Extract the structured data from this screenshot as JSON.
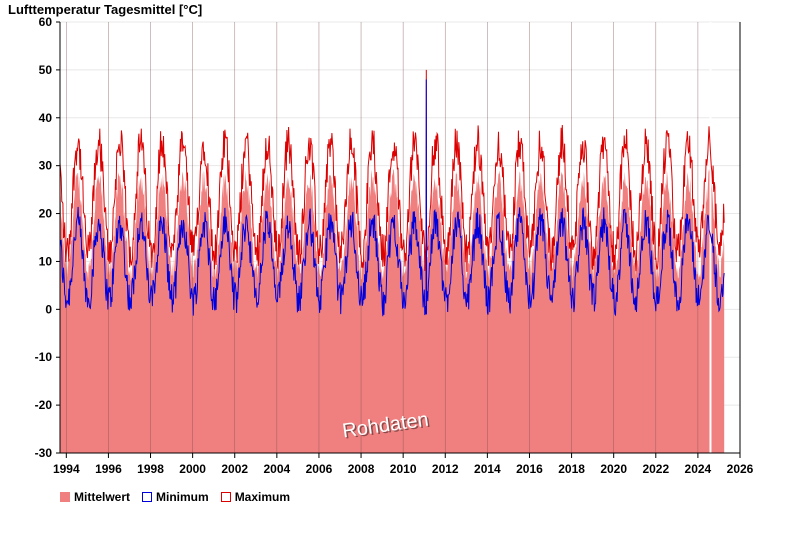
{
  "chart_data": {
    "type": "area",
    "title": "Lufttemperatur Tagesmittel [°C]",
    "xlabel": "",
    "ylabel": "",
    "xlim": [
      1993.7,
      2026.0
    ],
    "ylim": [
      -30,
      60
    ],
    "y_ticks": [
      -30,
      -20,
      -10,
      0,
      10,
      20,
      30,
      40,
      50,
      60
    ],
    "y_tick_labels": [
      "-30",
      "-20",
      "-10",
      "0",
      "10",
      "20",
      "30",
      "40",
      "50",
      "60"
    ],
    "x_ticks": [
      1994,
      1996,
      1998,
      2000,
      2002,
      2004,
      2006,
      2008,
      2010,
      2012,
      2014,
      2016,
      2018,
      2020,
      2022,
      2024,
      2026
    ],
    "x_tick_labels": [
      "1994",
      "1996",
      "1998",
      "2000",
      "2002",
      "2004",
      "2006",
      "2008",
      "2010",
      "2012",
      "2014",
      "2016",
      "2018",
      "2020",
      "2022",
      "2024",
      "2026"
    ],
    "data_start": 1993.7,
    "data_end": 2025.25,
    "gap": [
      2024.55,
      2024.62
    ],
    "annotation": "Rohdaten",
    "series": [
      {
        "name": "Mittelwert",
        "color": "#f08080",
        "style": "filled-area",
        "typical_min": 8,
        "typical_max": 27
      },
      {
        "name": "Minimum",
        "color": "#0000dd",
        "style": "line",
        "typical_min": 2,
        "typical_max": 18,
        "outlier": {
          "x": 2011.1,
          "y": 48
        }
      },
      {
        "name": "Maximum",
        "color": "#dd0000",
        "style": "line",
        "typical_min": 11,
        "typical_max": 34,
        "outlier": {
          "x": 2011.1,
          "y": 50
        }
      }
    ],
    "legend": {
      "position": "bottom-left",
      "items": [
        {
          "label": "Mittelwert",
          "color": "#f08080",
          "filled": true
        },
        {
          "label": "Minimum",
          "color": "#0000dd",
          "filled": false
        },
        {
          "label": "Maximum",
          "color": "#dd0000",
          "filled": false
        }
      ]
    }
  }
}
